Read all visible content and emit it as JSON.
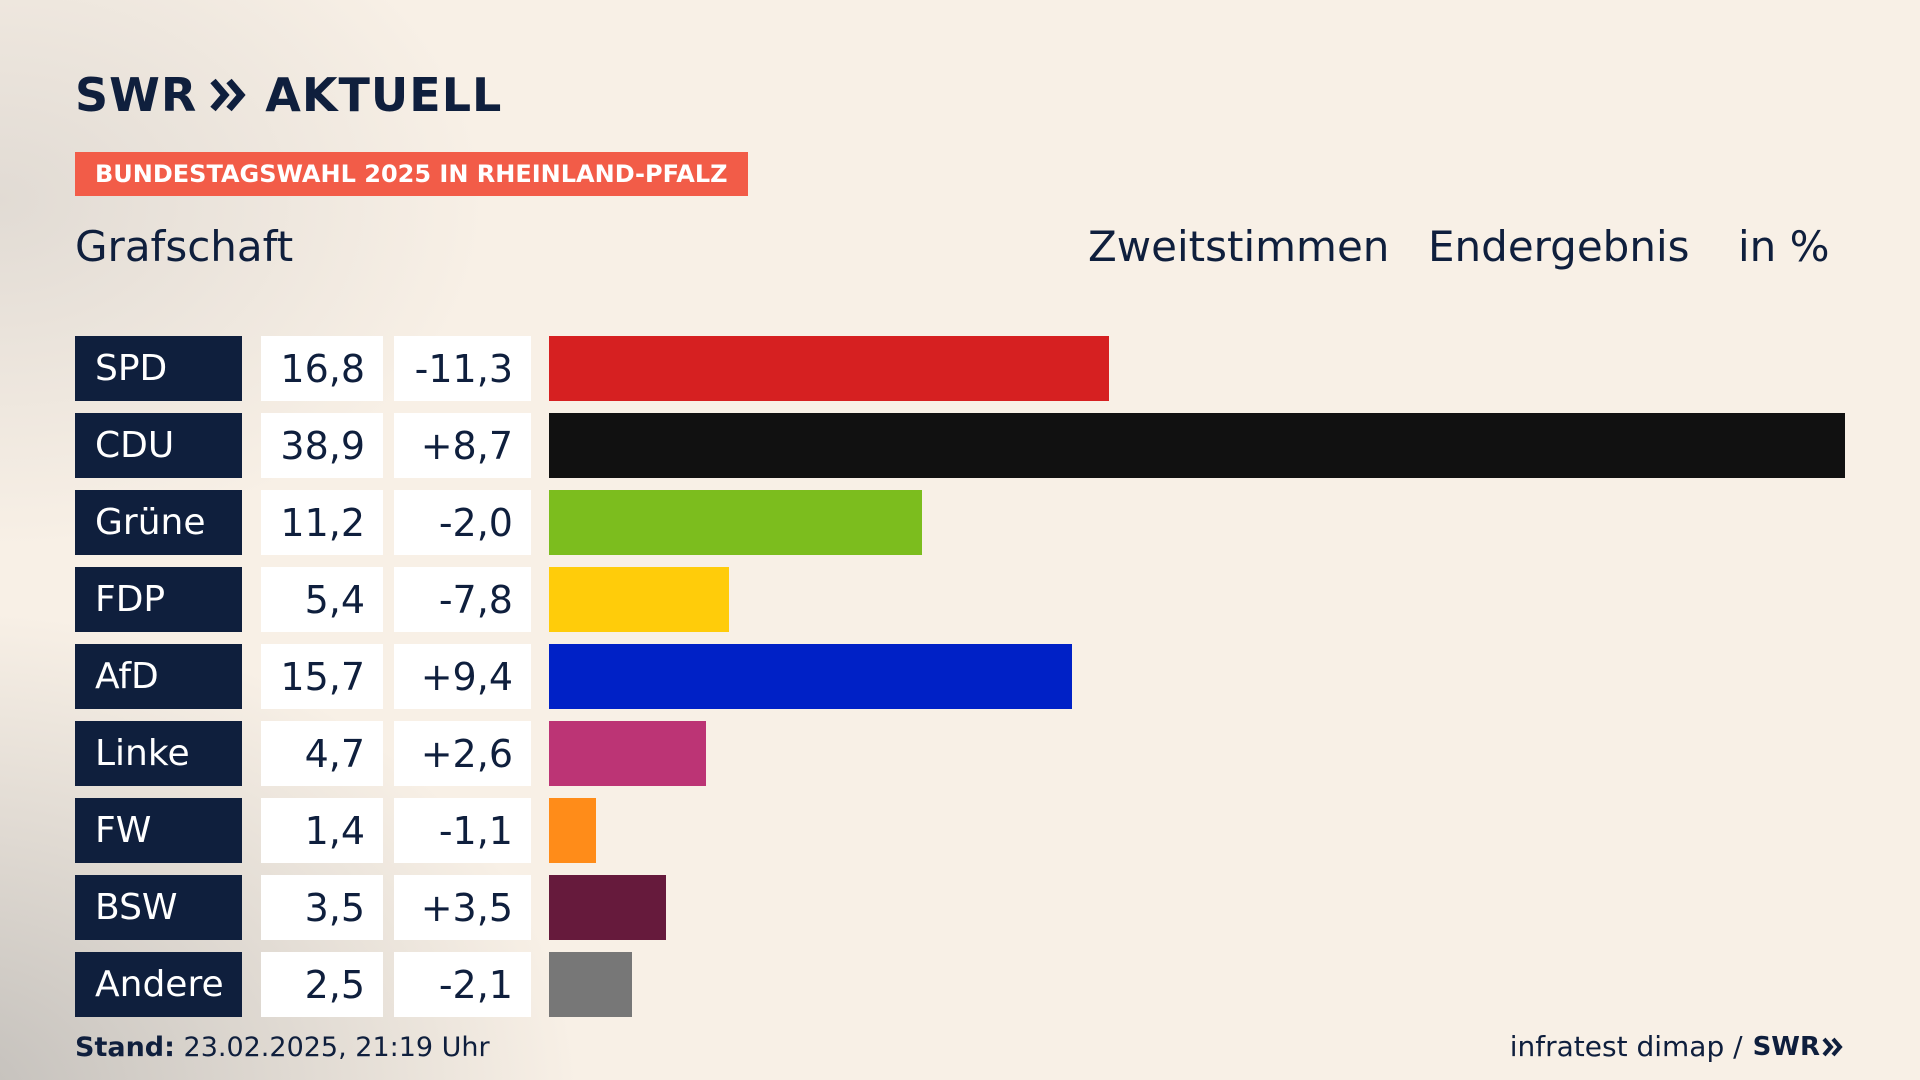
{
  "brand": {
    "logo_left": "SWR",
    "logo_right": "AKTUELL",
    "logo_arrows_icon": "double-chevron-right-icon"
  },
  "badge": "BUNDESTAGSWAHL 2025 IN RHEINLAND-PFALZ",
  "region": "Grafschaft",
  "header": {
    "vote_type": "Zweitstimmen",
    "status": "Endergebnis",
    "unit": "in %"
  },
  "chart_data": {
    "type": "bar",
    "orientation": "horizontal",
    "categories": [
      "SPD",
      "CDU",
      "Grüne",
      "FDP",
      "AfD",
      "Linke",
      "FW",
      "BSW",
      "Andere"
    ],
    "values": [
      16.8,
      38.9,
      11.2,
      5.4,
      15.7,
      4.7,
      1.4,
      3.5,
      2.5
    ],
    "values_display": [
      "16,8",
      "38,9",
      "11,2",
      "5,4",
      "15,7",
      "4,7",
      "1,4",
      "3,5",
      "2,5"
    ],
    "changes": [
      -11.3,
      8.7,
      -2.0,
      -7.8,
      9.4,
      2.6,
      -1.1,
      3.5,
      -2.1
    ],
    "changes_display": [
      "-11,3",
      "+8,7",
      "-2,0",
      "-7,8",
      "+9,4",
      "+2,6",
      "-1,1",
      "+3,5",
      "-2,1"
    ],
    "colors": [
      "#d62021",
      "#111111",
      "#7cbd1e",
      "#ffcc0a",
      "#0021c6",
      "#bc3475",
      "#ff8c19",
      "#661a3c",
      "#777777"
    ],
    "xlim": [
      0,
      38.9
    ],
    "grid": false,
    "legend": "none"
  },
  "footer": {
    "stand_label": "Stand:",
    "stand_value": "23.02.2025, 21:19 Uhr",
    "source": "infratest dimap /",
    "source_logo": "SWR"
  }
}
